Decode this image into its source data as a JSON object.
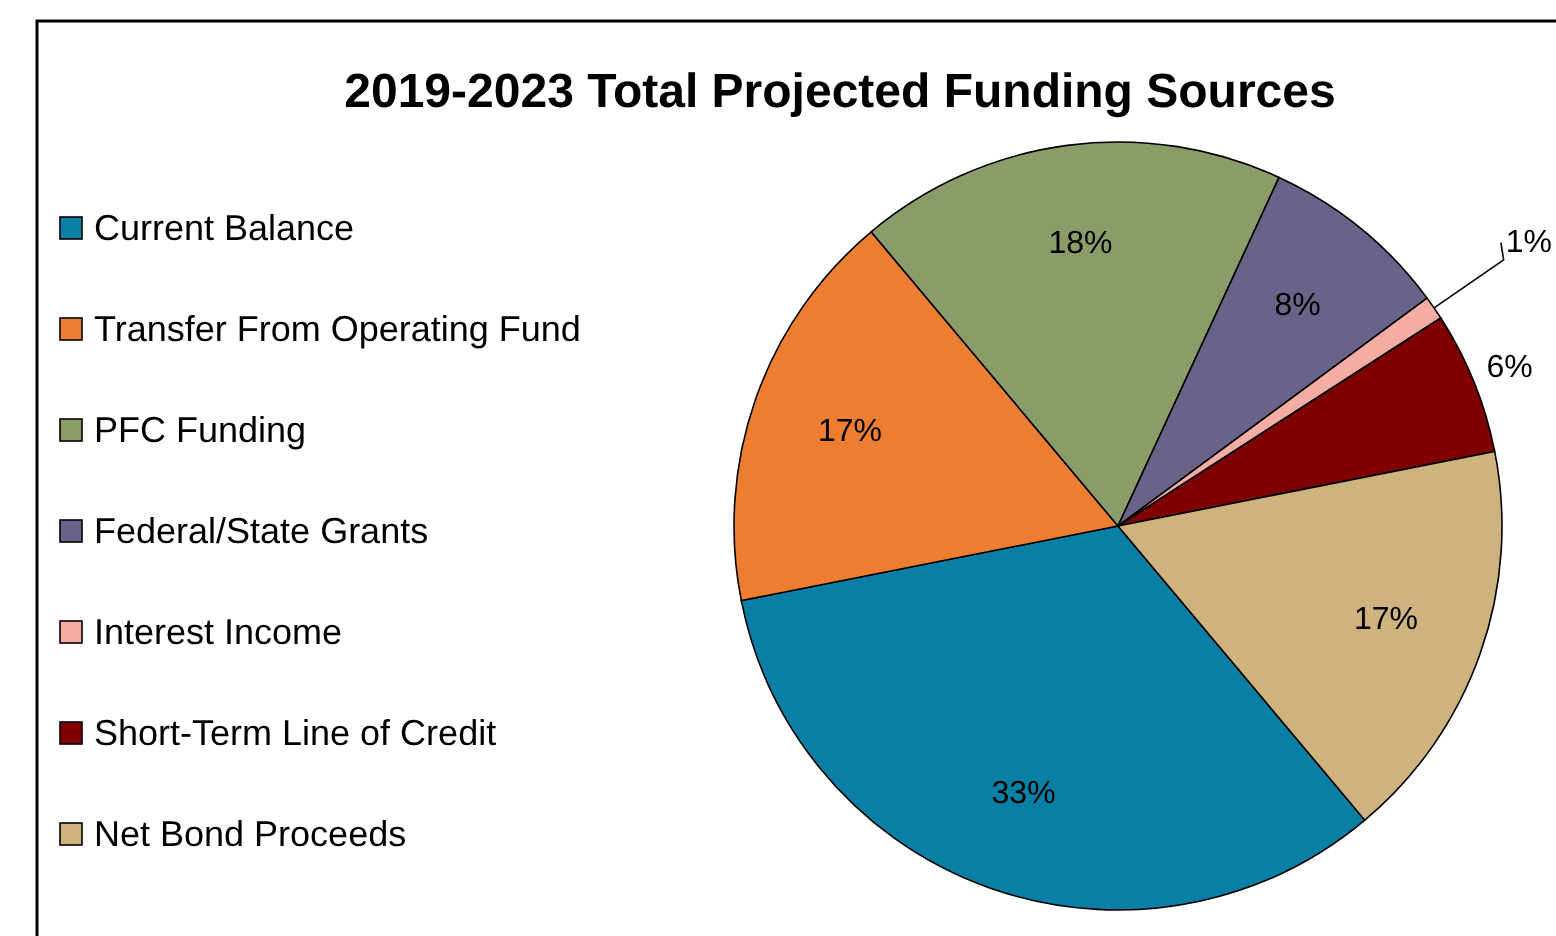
{
  "chart_data": {
    "type": "pie",
    "title": "2019-2023 Total Projected Funding Sources",
    "categories": [
      "Current Balance",
      "Transfer From Operating Fund",
      "PFC Funding",
      "Federal/State Grants",
      "Interest Income",
      "Short-Term Line of Credit",
      "Net Bond Proceeds"
    ],
    "values": [
      33,
      17,
      18,
      8,
      1,
      6,
      17
    ],
    "value_labels": [
      "33%",
      "17%",
      "18%",
      "8%",
      "1%",
      "6%",
      "17%"
    ],
    "colors": [
      "#0a7fa6",
      "#ed7d31",
      "#8a9c68",
      "#6a6389",
      "#f4aca3",
      "#7f0000",
      "#ceb37f"
    ],
    "legend": "left"
  }
}
